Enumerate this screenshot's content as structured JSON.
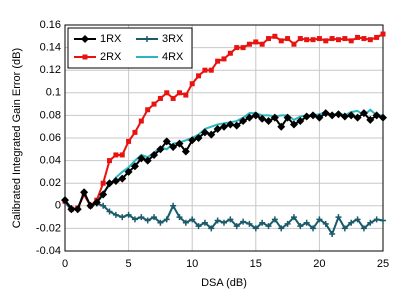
{
  "chart_data": {
    "type": "line",
    "x_label": "DSA (dB)",
    "y_label": "Calibrated Integrated Gain Error (dB)",
    "x": [
      0,
      0.5,
      1,
      1.5,
      2,
      2.5,
      3,
      3.5,
      4,
      4.5,
      5,
      5.5,
      6,
      6.5,
      7,
      7.5,
      8,
      8.5,
      9,
      9.5,
      10,
      10.5,
      11,
      11.5,
      12,
      12.5,
      13,
      13.5,
      14,
      14.5,
      15,
      15.5,
      16,
      16.5,
      17,
      17.5,
      18,
      18.5,
      19,
      19.5,
      20,
      20.5,
      21,
      21.5,
      22,
      22.5,
      23,
      23.5,
      24,
      24.5,
      25
    ],
    "series": [
      {
        "name": "1RX",
        "color": "#000000",
        "marker": "diamond",
        "values": [
          0.005,
          -0.003,
          -0.003,
          0.012,
          0,
          0.003,
          0.01,
          0.02,
          0.022,
          0.024,
          0.03,
          0.035,
          0.042,
          0.04,
          0.045,
          0.05,
          0.057,
          0.052,
          0.055,
          0.048,
          0.058,
          0.06,
          0.065,
          0.063,
          0.068,
          0.07,
          0.072,
          0.071,
          0.075,
          0.078,
          0.08,
          0.077,
          0.075,
          0.078,
          0.07,
          0.078,
          0.072,
          0.075,
          0.079,
          0.08,
          0.078,
          0.082,
          0.08,
          0.081,
          0.079,
          0.08,
          0.078,
          0.082,
          0.076,
          0.08,
          0.078
        ]
      },
      {
        "name": "2RX",
        "color": "#e8120f",
        "marker": "square",
        "values": [
          0.004,
          -0.003,
          -0.002,
          0.01,
          0,
          0.005,
          0.02,
          0.04,
          0.045,
          0.045,
          0.057,
          0.065,
          0.075,
          0.085,
          0.09,
          0.095,
          0.1,
          0.095,
          0.1,
          0.098,
          0.108,
          0.115,
          0.12,
          0.12,
          0.128,
          0.13,
          0.135,
          0.14,
          0.14,
          0.143,
          0.145,
          0.143,
          0.148,
          0.15,
          0.146,
          0.148,
          0.143,
          0.148,
          0.147,
          0.147,
          0.148,
          0.146,
          0.148,
          0.147,
          0.148,
          0.146,
          0.149,
          0.148,
          0.147,
          0.149,
          0.152
        ]
      },
      {
        "name": "3RX",
        "color": "#1a5b6b",
        "marker": "plus",
        "values": [
          0.005,
          -0.002,
          -0.003,
          0.012,
          0,
          0.002,
          0,
          -0.005,
          -0.008,
          -0.01,
          -0.008,
          -0.012,
          -0.01,
          -0.013,
          -0.01,
          -0.015,
          -0.012,
          0,
          -0.01,
          -0.015,
          -0.012,
          -0.018,
          -0.015,
          -0.02,
          -0.013,
          -0.015,
          -0.012,
          -0.018,
          -0.014,
          -0.016,
          -0.02,
          -0.015,
          -0.018,
          -0.012,
          -0.02,
          -0.016,
          -0.01,
          -0.018,
          -0.015,
          -0.02,
          -0.012,
          -0.016,
          -0.025,
          -0.01,
          -0.02,
          -0.015,
          -0.012,
          -0.02,
          -0.015,
          -0.012,
          -0.013
        ]
      },
      {
        "name": "4RX",
        "color": "#2ab5c0",
        "marker": "none",
        "values": [
          0.003,
          -0.004,
          -0.002,
          0.01,
          0,
          0.004,
          0.012,
          0.018,
          0.025,
          0.03,
          0.034,
          0.04,
          0.045,
          0.043,
          0.047,
          0.052,
          0.05,
          0.055,
          0.056,
          0.058,
          0.06,
          0.063,
          0.068,
          0.07,
          0.072,
          0.073,
          0.074,
          0.075,
          0.078,
          0.082,
          0.082,
          0.08,
          0.08,
          0.079,
          0.08,
          0.08,
          0.076,
          0.079,
          0.08,
          0.08,
          0.081,
          0.083,
          0.08,
          0.082,
          0.08,
          0.083,
          0.084,
          0.08,
          0.085,
          0.08,
          0.08
        ]
      }
    ],
    "xlim": [
      0,
      25
    ],
    "xticks": [
      0,
      5,
      10,
      15,
      20,
      25
    ],
    "ylim": [
      -0.04,
      0.16
    ],
    "yticks": [
      -0.04,
      -0.02,
      0,
      0.02,
      0.04,
      0.06,
      0.08,
      0.1,
      0.12,
      0.14,
      0.16
    ],
    "grid": true,
    "legend": "top-left"
  }
}
